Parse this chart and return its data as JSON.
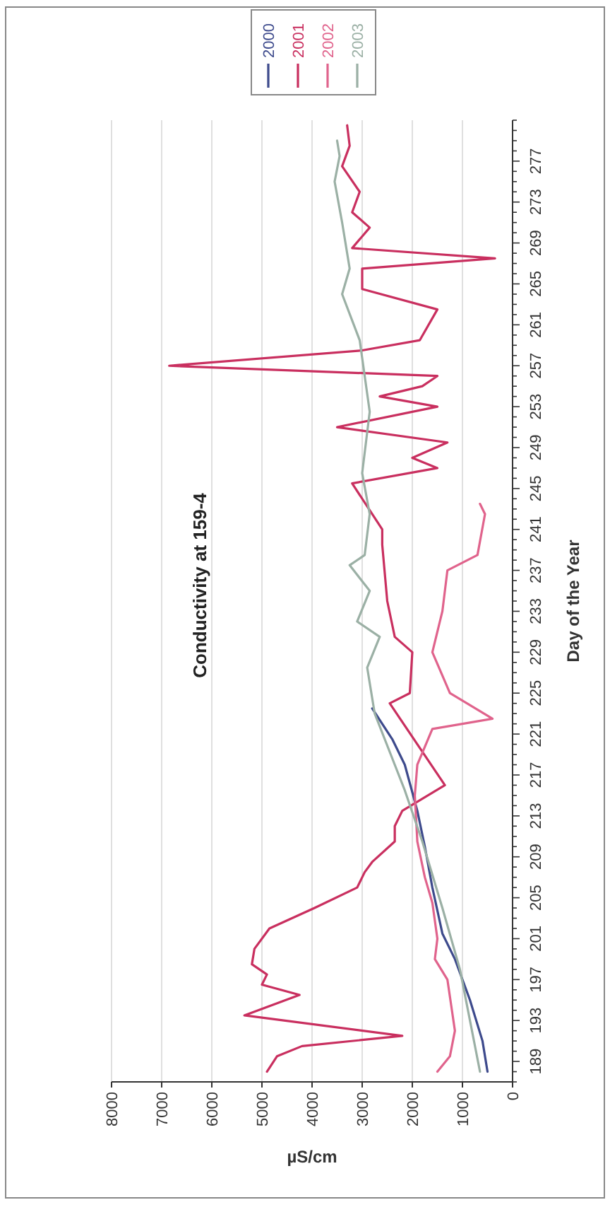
{
  "chart_data": {
    "type": "line",
    "title": "Conductivity at 159-4",
    "xlabel": "µS/cm",
    "ylabel": "Day of the Year",
    "xlim": [
      8000,
      0
    ],
    "xticks": [
      0,
      1000,
      2000,
      3000,
      4000,
      5000,
      6000,
      7000,
      8000
    ],
    "ylim": [
      187,
      281
    ],
    "yticks": [
      {
        "value": 187,
        "label": null
      },
      {
        "value": 188,
        "label": null
      },
      189,
      {
        "value": 190,
        "label": null
      },
      {
        "value": 191,
        "label": null
      },
      {
        "value": 192,
        "label": null
      },
      193,
      {
        "value": 194,
        "label": null
      },
      {
        "value": 195,
        "label": null
      },
      {
        "value": 196,
        "label": null
      },
      197,
      {
        "value": 198,
        "label": null
      },
      {
        "value": 199,
        "label": null
      },
      {
        "value": 200,
        "label": null
      },
      201,
      {
        "value": 202,
        "label": null
      },
      {
        "value": 203,
        "label": null
      },
      {
        "value": 204,
        "label": null
      },
      205,
      {
        "value": 206,
        "label": null
      },
      {
        "value": 207,
        "label": null
      },
      {
        "value": 208,
        "label": null
      },
      209,
      {
        "value": 210,
        "label": null
      },
      {
        "value": 211,
        "label": null
      },
      {
        "value": 212,
        "label": null
      },
      213,
      {
        "value": 214,
        "label": null
      },
      {
        "value": 215,
        "label": null
      },
      {
        "value": 216,
        "label": null
      },
      217,
      {
        "value": 218,
        "label": null
      },
      {
        "value": 219,
        "label": null
      },
      {
        "value": 220,
        "label": null
      },
      221,
      {
        "value": 222,
        "label": null
      },
      {
        "value": 223,
        "label": null
      },
      {
        "value": 224,
        "label": null
      },
      225,
      {
        "value": 226,
        "label": null
      },
      {
        "value": 227,
        "label": null
      },
      {
        "value": 228,
        "label": null
      },
      229,
      {
        "value": 230,
        "label": null
      },
      {
        "value": 231,
        "label": null
      },
      {
        "value": 232,
        "label": null
      },
      233,
      {
        "value": 234,
        "label": null
      },
      {
        "value": 235,
        "label": null
      },
      {
        "value": 236,
        "label": null
      },
      237,
      {
        "value": 238,
        "label": null
      },
      {
        "value": 239,
        "label": null
      },
      {
        "value": 240,
        "label": null
      },
      241,
      {
        "value": 242,
        "label": null
      },
      {
        "value": 243,
        "label": null
      },
      {
        "value": 244,
        "label": null
      },
      245,
      {
        "value": 246,
        "label": null
      },
      {
        "value": 247,
        "label": null
      },
      {
        "value": 248,
        "label": null
      },
      249,
      {
        "value": 250,
        "label": null
      },
      {
        "value": 251,
        "label": null
      },
      {
        "value": 252,
        "label": null
      },
      253,
      {
        "value": 254,
        "label": null
      },
      {
        "value": 255,
        "label": null
      },
      {
        "value": 256,
        "label": null
      },
      257,
      {
        "value": 258,
        "label": null
      },
      {
        "value": 259,
        "label": null
      },
      {
        "value": 260,
        "label": null
      },
      261,
      {
        "value": 262,
        "label": null
      },
      {
        "value": 263,
        "label": null
      },
      {
        "value": 264,
        "label": null
      },
      265,
      {
        "value": 266,
        "label": null
      },
      {
        "value": 267,
        "label": null
      },
      {
        "value": 268,
        "label": null
      },
      269,
      {
        "value": 270,
        "label": null
      },
      {
        "value": 271,
        "label": null
      },
      {
        "value": 272,
        "label": null
      },
      273,
      {
        "value": 274,
        "label": null
      },
      {
        "value": 275,
        "label": null
      },
      {
        "value": 276,
        "label": null
      },
      277,
      {
        "value": 278,
        "label": null
      },
      {
        "value": 279,
        "label": null
      },
      {
        "value": 280,
        "label": null
      },
      {
        "value": 281,
        "label": null
      }
    ],
    "grid": "x",
    "legend": "top",
    "series": [
      {
        "name": "2000",
        "color": "#3d4a8c",
        "values": [
          188,
          191,
          195,
          199,
          201.5,
          206,
          210,
          213.5,
          218,
          220.5,
          223.5
        ],
        "x": [
          500,
          600,
          850,
          1150,
          1400,
          1600,
          1750,
          1900,
          2150,
          2400,
          2800
        ]
      },
      {
        "name": "2001",
        "color": "#c92f5f",
        "values": [
          188,
          189.5,
          190.5,
          191.5,
          193.5,
          195.5,
          196.5,
          197.5,
          198.5,
          200,
          202,
          204,
          206,
          207.5,
          208.5,
          210.5,
          212,
          213.5,
          216,
          224,
          225,
          229,
          230.5,
          234,
          239.5,
          241,
          245.5,
          247,
          248,
          249.5,
          251,
          253,
          254,
          255,
          256,
          257,
          258.5,
          259.5,
          262.5,
          264.5,
          266.5,
          267.5,
          268.5,
          270.5,
          272,
          274,
          276.5,
          278.5,
          280.5
        ],
        "x": [
          4900,
          4700,
          4200,
          2200,
          5350,
          4250,
          5000,
          4900,
          5200,
          5150,
          4850,
          3950,
          3100,
          2950,
          2800,
          2350,
          2350,
          2200,
          1350,
          2450,
          2050,
          2000,
          2350,
          2500,
          2600,
          2600,
          3200,
          1500,
          2000,
          1300,
          3500,
          1500,
          2650,
          1800,
          1500,
          6850,
          3000,
          1850,
          1500,
          3000,
          3000,
          350,
          3200,
          2850,
          3200,
          3050,
          3400,
          3250,
          3300
        ]
      },
      {
        "name": "2002",
        "color": "#e0638c",
        "values": [
          188,
          189.5,
          192,
          197,
          199,
          201,
          204.5,
          207,
          210.5,
          215,
          218,
          221.5,
          222.5,
          225,
          229,
          233,
          237,
          238.5,
          242.5,
          243.5
        ],
        "x": [
          1500,
          1250,
          1150,
          1300,
          1550,
          1500,
          1600,
          1750,
          1900,
          1950,
          1900,
          1600,
          400,
          1250,
          1600,
          1400,
          1300,
          700,
          550,
          650
        ]
      },
      {
        "name": "2003",
        "color": "#9bb0a5",
        "values": [
          188,
          198,
          204,
          210.5,
          215.5,
          218,
          223,
          227.5,
          230.5,
          232,
          235,
          237.5,
          238.5,
          242.5,
          246.5,
          252.5,
          259.5,
          264,
          266.5,
          271,
          275,
          277.5,
          279
        ],
        "x": [
          650,
          1050,
          1400,
          1800,
          2150,
          2350,
          2750,
          2900,
          2650,
          3100,
          2850,
          3250,
          2950,
          2850,
          3000,
          2850,
          3050,
          3400,
          3250,
          3400,
          3550,
          3450,
          3500
        ]
      }
    ]
  }
}
